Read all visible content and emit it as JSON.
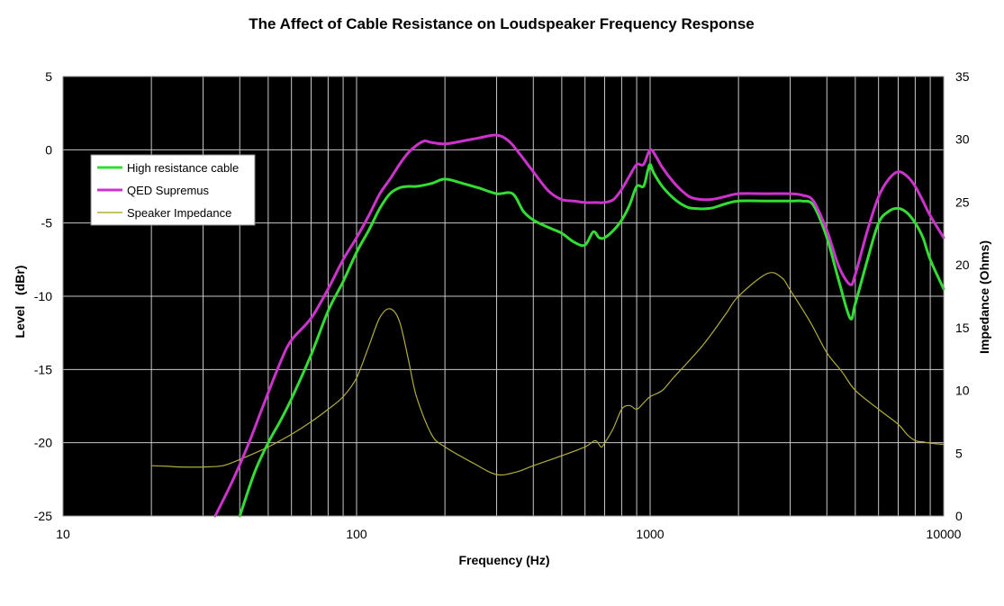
{
  "chart_data": {
    "type": "line",
    "title": "The Affect of Cable Resistance on Loudspeaker Frequency Response",
    "xlabel": "Frequency (Hz)",
    "ylabel": "Level   (dBr)",
    "y2label": "Impedance (Ohms)",
    "xscale": "log",
    "xlim": [
      10,
      10000
    ],
    "ylim": [
      -25,
      5
    ],
    "y2lim": [
      0,
      35
    ],
    "x_ticks": [
      "10",
      "100",
      "1000",
      "10000"
    ],
    "y_ticks": [
      "5",
      "0",
      "-5",
      "-10",
      "-15",
      "-20",
      "-25"
    ],
    "y2_ticks": [
      "35",
      "30",
      "25",
      "20",
      "15",
      "10",
      "5",
      "0"
    ],
    "grid": true,
    "legend_position": "upper-left",
    "colors": {
      "background": "#000000",
      "grid": "#c8c8c8",
      "green": "#33dd33",
      "magenta": "#cc33cc",
      "impedance": "#b3ad3c"
    },
    "series": [
      {
        "name": "High resistance cable",
        "axis": "left",
        "color": "#33dd33",
        "x": [
          40,
          45,
          50,
          55,
          60,
          70,
          80,
          90,
          100,
          110,
          120,
          130,
          140,
          150,
          160,
          180,
          200,
          230,
          260,
          300,
          340,
          370,
          400,
          450,
          500,
          550,
          600,
          640,
          670,
          700,
          750,
          800,
          850,
          900,
          950,
          980,
          1000,
          1030,
          1100,
          1200,
          1300,
          1400,
          1600,
          1800,
          2000,
          2500,
          3000,
          3300,
          3600,
          4000,
          4400,
          4800,
          5000,
          5500,
          6000,
          6500,
          7000,
          7500,
          8000,
          8500,
          9000,
          10000
        ],
        "y": [
          -25,
          -22,
          -20,
          -18.5,
          -17,
          -14,
          -11,
          -9,
          -7,
          -5.5,
          -4,
          -3,
          -2.6,
          -2.5,
          -2.5,
          -2.3,
          -2,
          -2.3,
          -2.6,
          -3,
          -3,
          -4.2,
          -4.8,
          -5.3,
          -5.7,
          -6.3,
          -6.5,
          -5.6,
          -6.0,
          -6.0,
          -5.5,
          -4.8,
          -3.8,
          -2.5,
          -2.5,
          -1.5,
          -1.0,
          -1.6,
          -2.5,
          -3.3,
          -3.8,
          -4.0,
          -4.0,
          -3.7,
          -3.5,
          -3.5,
          -3.5,
          -3.5,
          -3.8,
          -6.0,
          -9.0,
          -11.5,
          -10.5,
          -7.5,
          -5.0,
          -4.2,
          -4.0,
          -4.3,
          -5.0,
          -6.0,
          -7.5,
          -9.5
        ]
      },
      {
        "name": "QED Supremus",
        "axis": "left",
        "color": "#cc33cc",
        "x": [
          33,
          38,
          43,
          48,
          55,
          60,
          70,
          80,
          90,
          100,
          110,
          120,
          130,
          140,
          150,
          160,
          170,
          180,
          200,
          230,
          260,
          300,
          330,
          360,
          400,
          450,
          500,
          550,
          600,
          650,
          700,
          750,
          800,
          850,
          900,
          950,
          1000,
          1050,
          1100,
          1200,
          1300,
          1400,
          1600,
          1800,
          2000,
          2500,
          3000,
          3300,
          3600,
          4000,
          4400,
          4800,
          5000,
          5500,
          6000,
          6500,
          7000,
          7500,
          8000,
          8500,
          9000,
          10000
        ],
        "y": [
          -25,
          -22.5,
          -20,
          -17.5,
          -14.5,
          -13,
          -11.5,
          -9.5,
          -7.5,
          -6,
          -4.5,
          -3,
          -2,
          -1,
          -0.2,
          0.3,
          0.6,
          0.5,
          0.4,
          0.6,
          0.8,
          1.0,
          0.6,
          -0.3,
          -1.5,
          -2.8,
          -3.4,
          -3.5,
          -3.6,
          -3.6,
          -3.6,
          -3.4,
          -2.7,
          -1.8,
          -1.0,
          -1.0,
          0.0,
          -0.5,
          -1.2,
          -2.2,
          -2.9,
          -3.3,
          -3.4,
          -3.2,
          -3.0,
          -3.0,
          -3.0,
          -3.1,
          -3.5,
          -5.5,
          -8.0,
          -9.2,
          -8.5,
          -5.5,
          -3.2,
          -2.0,
          -1.5,
          -1.8,
          -2.5,
          -3.5,
          -4.5,
          -6.0
        ]
      },
      {
        "name": "Speaker Impedance",
        "axis": "right",
        "color": "#b3ad3c",
        "x": [
          20,
          23,
          25,
          30,
          35,
          40,
          50,
          60,
          70,
          80,
          90,
          100,
          110,
          120,
          130,
          140,
          150,
          160,
          180,
          200,
          250,
          300,
          350,
          400,
          500,
          600,
          650,
          680,
          700,
          750,
          800,
          850,
          900,
          950,
          1000,
          1100,
          1200,
          1500,
          1800,
          2000,
          2500,
          2800,
          3000,
          3500,
          4000,
          4500,
          5000,
          6000,
          7000,
          7500,
          8000,
          8500,
          9000,
          10000
        ],
        "y": [
          4,
          3.95,
          3.9,
          3.9,
          4,
          4.5,
          5.5,
          6.5,
          7.5,
          8.5,
          9.5,
          11,
          13.5,
          15.8,
          16.5,
          15.5,
          12.5,
          9.5,
          6.5,
          5.5,
          4.2,
          3.3,
          3.5,
          4.0,
          4.8,
          5.5,
          6.0,
          5.5,
          5.8,
          7.0,
          8.5,
          8.8,
          8.5,
          9.0,
          9.5,
          10.0,
          11.0,
          13.5,
          16.0,
          17.5,
          19.3,
          19.0,
          18.0,
          15.5,
          13.0,
          11.5,
          10.0,
          8.5,
          7.3,
          6.5,
          6.0,
          5.9,
          5.8,
          5.7
        ]
      }
    ]
  }
}
